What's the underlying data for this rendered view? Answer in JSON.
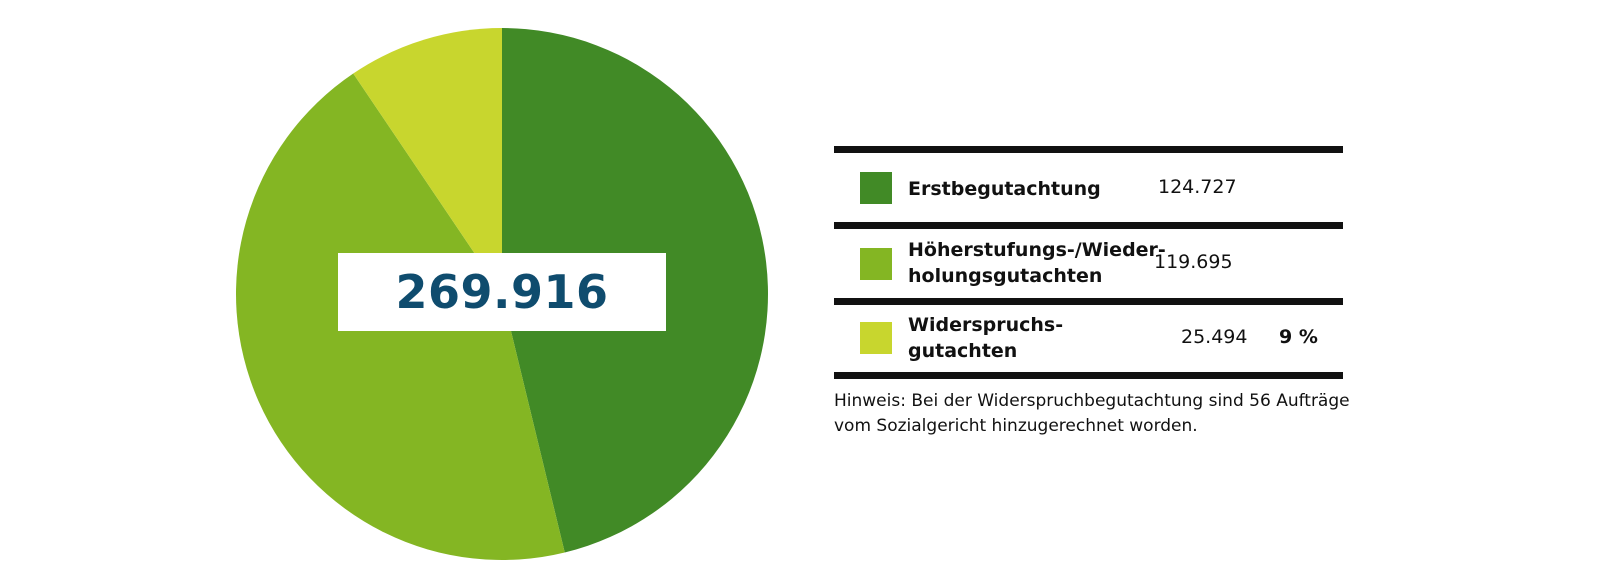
{
  "chart_data": {
    "type": "pie",
    "total_label": "269.916",
    "slices": [
      {
        "label_lines": [
          "Erstbegutachtung"
        ],
        "value": 124727,
        "value_label": "124.727",
        "percent_label": "",
        "color": "#418a26"
      },
      {
        "label_lines": [
          "Höherstufungs-/Wieder-",
          "holungsgutachten"
        ],
        "value": 119695,
        "value_label": "119.695",
        "percent_label": "",
        "color": "#84b623"
      },
      {
        "label_lines": [
          "Widerspruchs-",
          "gutachten"
        ],
        "value": 25494,
        "value_label": "25.494",
        "percent_label": "9 %",
        "color": "#c8d62e"
      }
    ],
    "note_lines": [
      "Hinweis: Bei der Widerspruchbegutachtung sind 56 Aufträge",
      "vom Sozialgericht hinzugerechnet worden."
    ]
  }
}
